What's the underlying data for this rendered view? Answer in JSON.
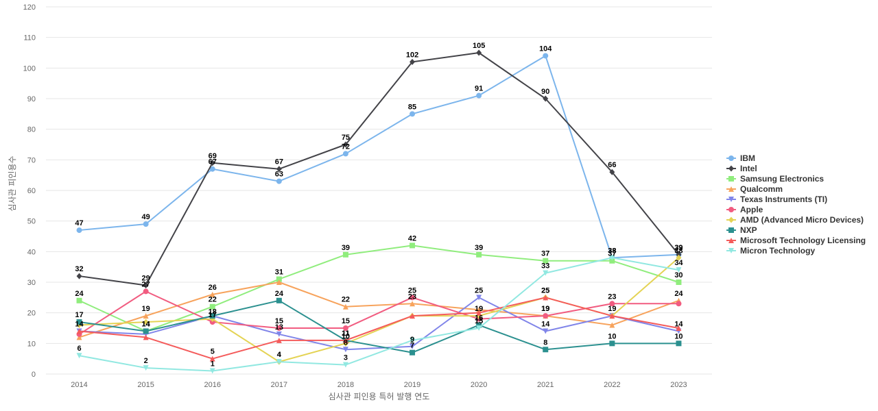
{
  "chart_data": {
    "type": "line",
    "title": "",
    "xlabel": "심사관 피인용 특허 발행 연도",
    "ylabel": "심사관 피인용수",
    "ylim": [
      0,
      120
    ],
    "yticks": [
      0,
      10,
      20,
      30,
      40,
      50,
      60,
      70,
      80,
      90,
      100,
      110,
      120
    ],
    "grid": true,
    "legend_position": "right",
    "x": [
      "2014",
      "2015",
      "2016",
      "2017",
      "2018",
      "2019",
      "2020",
      "2021",
      "2022",
      "2023"
    ],
    "series": [
      {
        "name": "IBM",
        "color": "#7cb5ec",
        "marker": "circle",
        "values": [
          47,
          49,
          67,
          63,
          72,
          85,
          91,
          104,
          38,
          39
        ]
      },
      {
        "name": "Intel",
        "color": "#434348",
        "marker": "diamond",
        "values": [
          32,
          29,
          69,
          67,
          75,
          102,
          105,
          90,
          66,
          39
        ]
      },
      {
        "name": "Samsung Electronics",
        "color": "#90ed7d",
        "marker": "square",
        "values": [
          24,
          14,
          22,
          31,
          39,
          42,
          39,
          37,
          37,
          30
        ]
      },
      {
        "name": "Qualcomm",
        "color": "#f7a35c",
        "marker": "triangle",
        "values": [
          12,
          19,
          26,
          30,
          22,
          23,
          21,
          19,
          16,
          24
        ]
      },
      {
        "name": "Texas Instruments (TI)",
        "color": "#8085e9",
        "marker": "triangle-down",
        "values": [
          14,
          13,
          19,
          13,
          8,
          9,
          25,
          14,
          19,
          14
        ]
      },
      {
        "name": "Apple",
        "color": "#f15c80",
        "marker": "circle",
        "values": [
          13,
          27,
          17,
          15,
          15,
          25,
          18,
          19,
          23,
          23
        ]
      },
      {
        "name": "AMD (Advanced Micro Devices)",
        "color": "#e4d354",
        "marker": "diamond",
        "values": [
          16,
          17,
          18,
          4,
          10,
          19,
          19,
          25,
          19,
          38
        ]
      },
      {
        "name": "NXP",
        "color": "#2b908f",
        "marker": "square",
        "values": [
          17,
          14,
          19,
          24,
          11,
          7,
          16,
          8,
          10,
          10
        ]
      },
      {
        "name": "Microsoft Technology Licensing",
        "color": "#f45b5b",
        "marker": "triangle",
        "values": [
          14,
          12,
          5,
          11,
          11,
          19,
          20,
          25,
          19,
          15
        ]
      },
      {
        "name": "Micron Technology",
        "color": "#91e8e1",
        "marker": "triangle-down",
        "values": [
          6,
          2,
          1,
          4,
          3,
          11,
          15,
          33,
          38,
          34
        ]
      }
    ],
    "data_labels": [
      {
        "series": "IBM",
        "indices": [
          0,
          1,
          2,
          3,
          4,
          5,
          6,
          7,
          8,
          9
        ]
      },
      {
        "series": "Intel",
        "indices": [
          0,
          1,
          2,
          3,
          4,
          5,
          6,
          7,
          8,
          9
        ]
      },
      {
        "series": "Samsung Electronics",
        "indices": [
          0,
          1,
          2,
          3,
          4,
          5,
          6,
          7,
          8,
          9
        ]
      },
      {
        "series": "Qualcomm",
        "indices": [
          1,
          2,
          4,
          5,
          7,
          9
        ]
      },
      {
        "series": "Texas Instruments (TI)",
        "indices": [
          3,
          4,
          5,
          6,
          7,
          9
        ]
      },
      {
        "series": "Apple",
        "indices": [
          1,
          2,
          3,
          4,
          5,
          7,
          8
        ]
      },
      {
        "series": "AMD (Advanced Micro Devices)",
        "indices": [
          2,
          3,
          4,
          6,
          7,
          8,
          9
        ]
      },
      {
        "series": "NXP",
        "indices": [
          0,
          1,
          3,
          4,
          5,
          6,
          7,
          8,
          9
        ]
      },
      {
        "series": "Microsoft Technology Licensing",
        "indices": [
          0,
          2,
          4,
          7
        ]
      },
      {
        "series": "Micron Technology",
        "indices": [
          0,
          1,
          2,
          3,
          4,
          6,
          7,
          8,
          9
        ]
      }
    ]
  }
}
